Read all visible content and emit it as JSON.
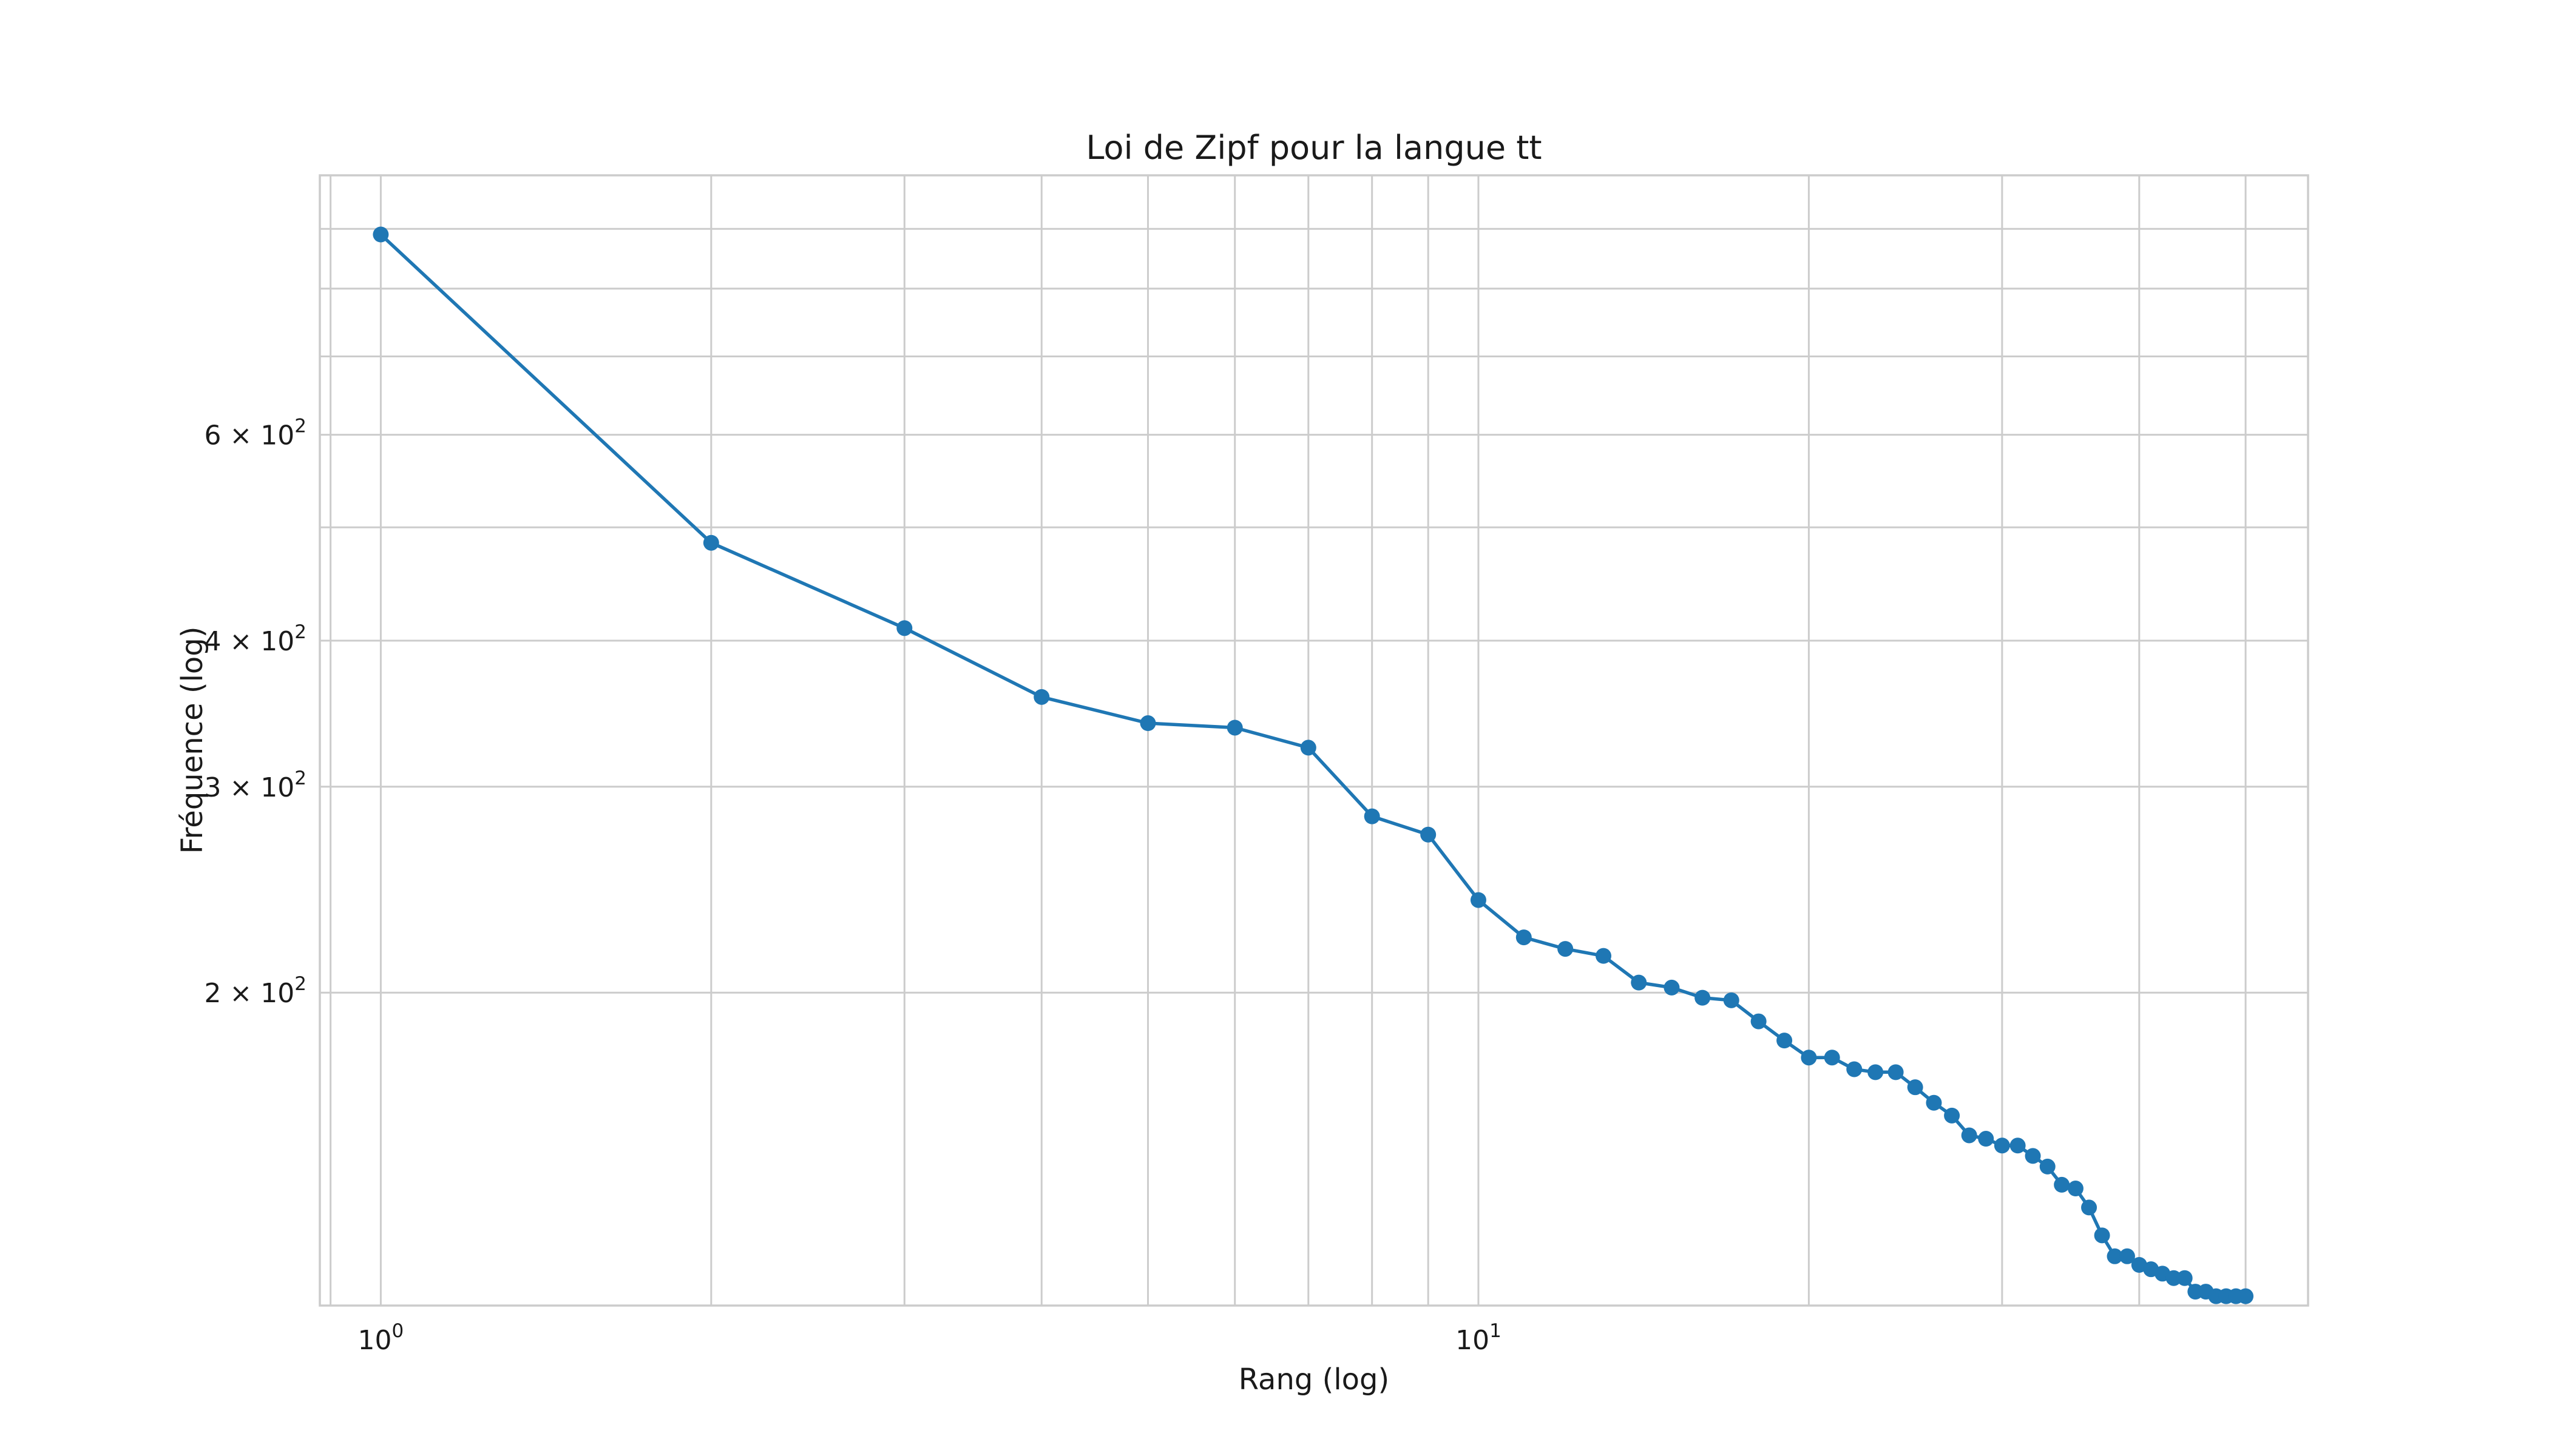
{
  "chart_data": {
    "type": "line",
    "title": "Loi de Zipf pour la langue tt",
    "xlabel": "Rang (log)",
    "ylabel": "Fréquence (log)",
    "xscale": "log",
    "yscale": "log",
    "xlim": [
      0.88,
      57
    ],
    "ylim": [
      108,
      1000
    ],
    "grid": true,
    "x_ticks": [
      {
        "value": 1,
        "base": "10",
        "exp": "0"
      },
      {
        "value": 10,
        "base": "10",
        "exp": "1"
      }
    ],
    "y_ticks": [
      {
        "value": 200,
        "mantissa": "2",
        "base": "10",
        "exp": "2"
      },
      {
        "value": 300,
        "mantissa": "3",
        "base": "10",
        "exp": "2"
      },
      {
        "value": 400,
        "mantissa": "4",
        "base": "10",
        "exp": "2"
      },
      {
        "value": 600,
        "mantissa": "6",
        "base": "10",
        "exp": "2"
      }
    ],
    "color": "#1f77b4",
    "series": [
      {
        "x": [
          1,
          2,
          3,
          4,
          5,
          6,
          7,
          8,
          9,
          10,
          11,
          12,
          13,
          14,
          15,
          16,
          17,
          18,
          19,
          20,
          21,
          22,
          23,
          24,
          25,
          26,
          27,
          28,
          29,
          30,
          31,
          32,
          33,
          34,
          35,
          36,
          37,
          38,
          39,
          40,
          41,
          42,
          43,
          44,
          45,
          46,
          47,
          48,
          49,
          50
        ],
        "values": [
          890,
          485,
          410,
          358,
          340,
          337,
          324,
          283,
          273,
          240,
          223,
          218,
          215,
          204,
          202,
          198,
          197,
          189,
          182,
          176,
          176,
          172,
          171,
          171,
          166,
          161,
          157,
          151,
          150,
          148,
          148,
          145,
          142,
          137,
          136,
          131,
          124,
          119,
          119,
          117,
          116,
          115,
          114,
          114,
          111,
          111,
          110,
          110,
          110,
          110
        ]
      }
    ]
  }
}
